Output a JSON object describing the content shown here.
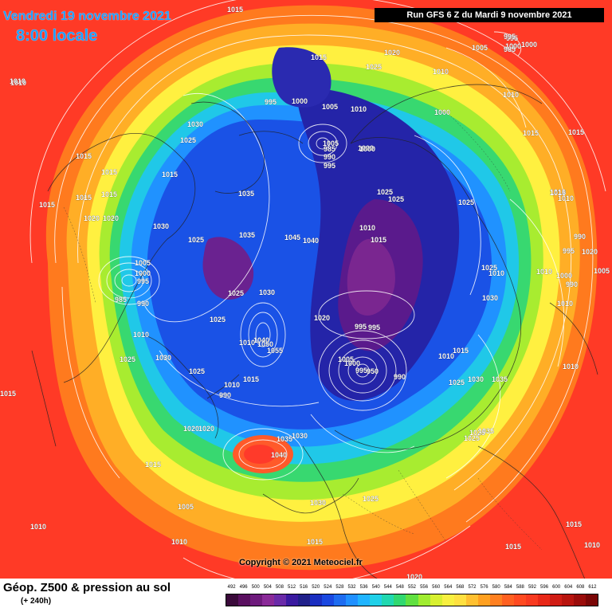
{
  "header": {
    "date": "Vendredi 19 novembre 2021",
    "time": "8:00 locale",
    "run": "Run GFS 6 Z du Mardi 9 novembre 2021"
  },
  "copyright": "Copyright © 2021 Meteociel.fr",
  "footer": {
    "title": "Géop. Z500 & pression au sol",
    "subtitle": "(+ 240h)"
  },
  "legend": {
    "labels": [
      "492",
      "496",
      "500",
      "504",
      "508",
      "512",
      "516",
      "520",
      "524",
      "528",
      "532",
      "536",
      "540",
      "544",
      "548",
      "552",
      "556",
      "560",
      "564",
      "568",
      "572",
      "576",
      "580",
      "584",
      "588",
      "592",
      "596",
      "600",
      "604",
      "608",
      "612"
    ],
    "colors": [
      "#3a0a3a",
      "#5a1060",
      "#6e1a7c",
      "#8a2a98",
      "#6a2aa8",
      "#3a1aa0",
      "#20208a",
      "#1a2ec0",
      "#1a48e0",
      "#1e6cf0",
      "#2090ff",
      "#20b4ff",
      "#20d0e8",
      "#20d8b0",
      "#30d870",
      "#60e040",
      "#a0ec30",
      "#d8f030",
      "#f8f040",
      "#ffe040",
      "#ffc030",
      "#ffa020",
      "#ff8020",
      "#ff6020",
      "#ff4a20",
      "#f83a20",
      "#e82818",
      "#d01c14",
      "#b8140e",
      "#9a0c0a",
      "#7a0606"
    ]
  },
  "pressure_labels": [
    {
      "value": "1015"
    },
    {
      "value": "1010"
    },
    {
      "value": "1015"
    },
    {
      "value": "1030"
    },
    {
      "value": "1025"
    },
    {
      "value": "1015"
    },
    {
      "value": "1015"
    },
    {
      "value": "1015"
    },
    {
      "value": "1015"
    },
    {
      "value": "1020"
    },
    {
      "value": "1015"
    },
    {
      "value": "1020"
    },
    {
      "value": "1025"
    },
    {
      "value": "1000"
    },
    {
      "value": "1005"
    },
    {
      "value": "995"
    },
    {
      "value": "995"
    },
    {
      "value": "1000"
    },
    {
      "value": "1005"
    },
    {
      "value": "1010"
    },
    {
      "value": "1035"
    },
    {
      "value": "1030"
    },
    {
      "value": "1025"
    },
    {
      "value": "1035"
    },
    {
      "value": "1045"
    },
    {
      "value": "1040"
    },
    {
      "value": "1025"
    },
    {
      "value": "1030"
    },
    {
      "value": "1015"
    },
    {
      "value": "1005"
    },
    {
      "value": "1000"
    },
    {
      "value": "995"
    },
    {
      "value": "985"
    },
    {
      "value": "990"
    },
    {
      "value": "1010"
    },
    {
      "value": "1025"
    },
    {
      "value": "1030"
    },
    {
      "value": "1025"
    },
    {
      "value": "1010"
    },
    {
      "value": "1040"
    },
    {
      "value": "1050"
    },
    {
      "value": "1055"
    },
    {
      "value": "1015"
    },
    {
      "value": "1010"
    },
    {
      "value": "990"
    },
    {
      "value": "1020"
    },
    {
      "value": "1020"
    },
    {
      "value": "1020"
    },
    {
      "value": "985"
    },
    {
      "value": "990"
    },
    {
      "value": "995"
    },
    {
      "value": "1000"
    },
    {
      "value": "1025"
    },
    {
      "value": "1025"
    },
    {
      "value": "1010"
    },
    {
      "value": "1015"
    },
    {
      "value": "1020"
    },
    {
      "value": "995"
    },
    {
      "value": "1005"
    },
    {
      "value": "1000"
    },
    {
      "value": "995"
    },
    {
      "value": "950"
    },
    {
      "value": "990"
    },
    {
      "value": "1010"
    },
    {
      "value": "1015"
    },
    {
      "value": "1025"
    },
    {
      "value": "1030"
    },
    {
      "value": "1035"
    },
    {
      "value": "1035"
    },
    {
      "value": "1030"
    },
    {
      "value": "1040"
    },
    {
      "value": "1030"
    },
    {
      "value": "1025"
    },
    {
      "value": "1015"
    },
    {
      "value": "1005"
    },
    {
      "value": "1010"
    },
    {
      "value": "1010"
    },
    {
      "value": "1015"
    },
    {
      "value": "1020"
    },
    {
      "value": "1025"
    },
    {
      "value": "1025"
    },
    {
      "value": "1025"
    },
    {
      "value": "1025"
    },
    {
      "value": "1030"
    },
    {
      "value": "1035"
    },
    {
      "value": "1015"
    },
    {
      "value": "1025"
    },
    {
      "value": "1010"
    },
    {
      "value": "1000"
    },
    {
      "value": "995"
    },
    {
      "value": "1000"
    },
    {
      "value": "1005"
    },
    {
      "value": "1010"
    },
    {
      "value": "1015"
    },
    {
      "value": "1010"
    },
    {
      "value": "1010"
    },
    {
      "value": "1010"
    },
    {
      "value": "990"
    },
    {
      "value": "995"
    },
    {
      "value": "1005"
    },
    {
      "value": "1010"
    },
    {
      "value": "1000"
    },
    {
      "value": "990"
    },
    {
      "value": "1010"
    },
    {
      "value": "1010"
    },
    {
      "value": "1015"
    },
    {
      "value": "1010"
    },
    {
      "value": "1015"
    },
    {
      "value": "1015"
    },
    {
      "value": "1020"
    },
    {
      "value": "995"
    },
    {
      "value": "1000"
    },
    {
      "value": "985"
    },
    {
      "value": "1015"
    },
    {
      "value": "1010"
    }
  ]
}
